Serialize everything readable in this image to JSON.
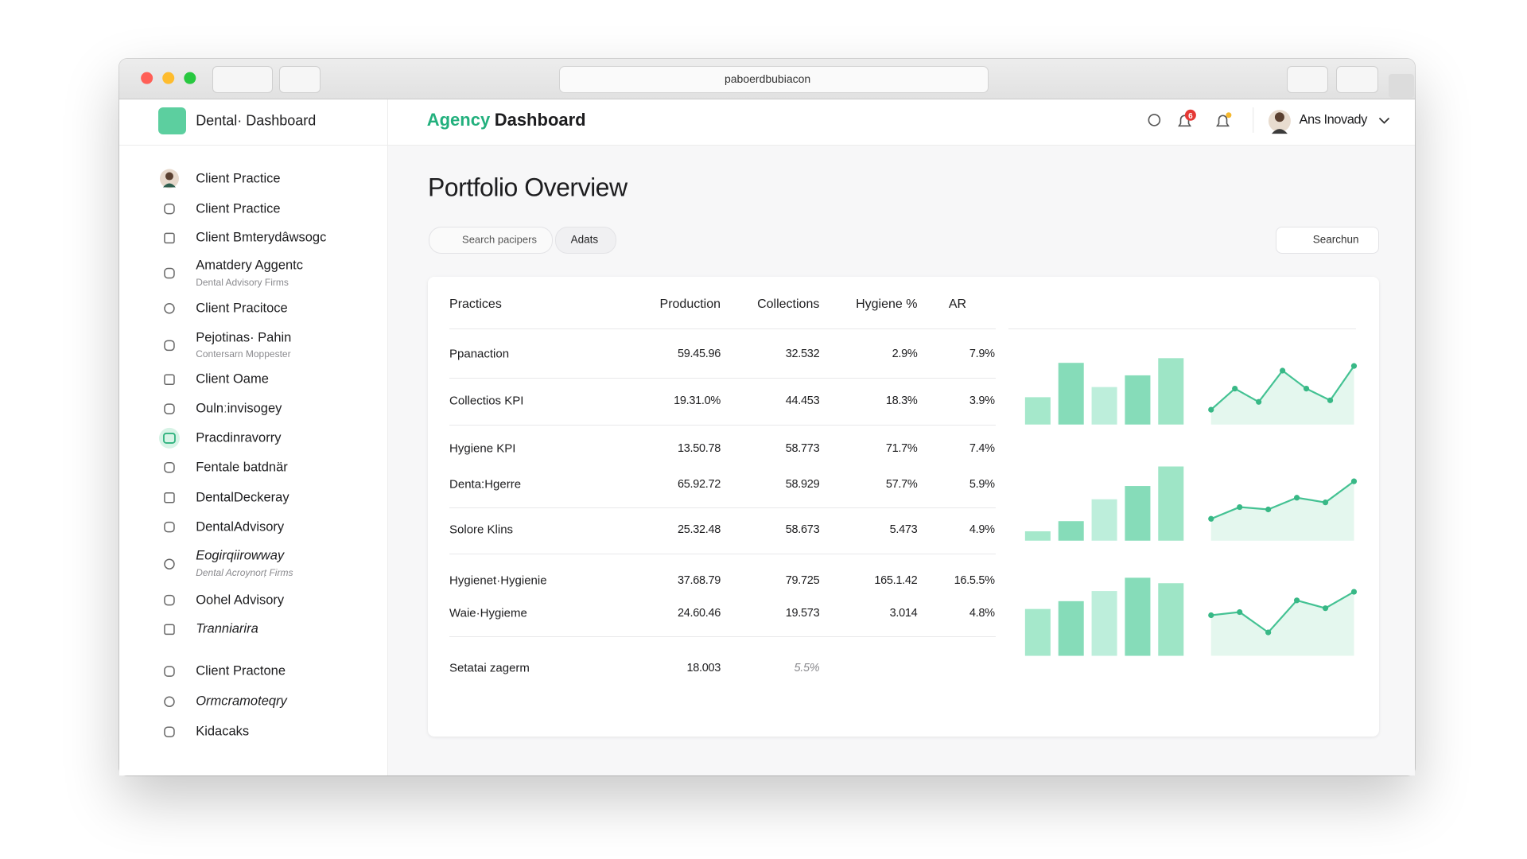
{
  "browser": {
    "url": "paboerdbubiacon"
  },
  "sidebar": {
    "brand": "Dental· Dashboard",
    "items": [
      {
        "label": "Client Practice"
      },
      {
        "label": "Client Practice"
      },
      {
        "label": "Client Bmterydâwsogc"
      },
      {
        "label": "Amatdery Aggentc",
        "sub": "Dental Advisory Firms"
      },
      {
        "label": "Client Pracitoce"
      },
      {
        "label": "Pejotinas· Pahin",
        "sub": "Contersarn Moppester"
      },
      {
        "label": "Client Oame"
      },
      {
        "label": "Oulnːinvisogey"
      },
      {
        "label": "Pracdinravorry"
      },
      {
        "label": "Fentale batdnär"
      },
      {
        "label": "DentalDeckeray"
      },
      {
        "label": "DentalAdvisory"
      },
      {
        "label": "Eogirqiirowway",
        "sub": "Dental Acroynorṭ Firms"
      },
      {
        "label": "Oohel Advisory"
      },
      {
        "label": "Tranniarira"
      },
      {
        "label": "Client Practone"
      },
      {
        "label": "Ormcramoteqry"
      },
      {
        "label": "Kidacaks"
      }
    ]
  },
  "header": {
    "title_accent": "Agency",
    "title": "Dashboard",
    "badge": "6",
    "user": "Ans Inovady"
  },
  "content": {
    "title": "Portfolio Overview",
    "search_placeholder": "Search pacipers",
    "filter": "Adats",
    "search_button": "Searchun"
  },
  "table": {
    "columns": [
      "Practices",
      "Production",
      "Collections",
      "Hygiene %",
      "AR"
    ],
    "groups": [
      [
        [
          "Ppanaction",
          "59.45.96",
          "32.532",
          "2.9%",
          "7.9%"
        ]
      ],
      [
        [
          "Collectios KPI",
          "19.31.0%",
          "44.453",
          "18.3%",
          "3.9%"
        ]
      ],
      [
        [
          "Hygiene KPI",
          "13.50.78",
          "58.773",
          "71.7%",
          "7.4%"
        ],
        [
          "Denta:Hgerre",
          "65.92.72",
          "58.929",
          "57.7%",
          "5.9%"
        ]
      ],
      [
        [
          "Solore Klins",
          "25.32.48",
          "58.673",
          "5.473",
          "4.9%"
        ]
      ],
      [
        [
          "Hygienet·Hygienie",
          "37.68.79",
          "79.725",
          "165.1.42",
          "16.5.5%"
        ],
        [
          "Waie·Hygieme",
          "24.60.46",
          "19.573",
          "3.014",
          "4.8%"
        ]
      ],
      [
        [
          "Setatai zagerm",
          "18.003",
          "5.5%"
        ]
      ]
    ]
  },
  "sparklines": {
    "ylim": [
      0,
      100
    ],
    "charts": [
      {
        "bars": [
          35,
          79,
          48,
          63,
          85
        ],
        "line": [
          19,
          46,
          29,
          69,
          46,
          31,
          75
        ]
      },
      {
        "bars": [
          12,
          25,
          53,
          70,
          95
        ],
        "line": [
          28,
          43,
          40,
          55,
          49,
          76
        ]
      },
      {
        "bars": [
          60,
          70,
          83,
          100,
          93
        ],
        "line": [
          52,
          56,
          30,
          71,
          61,
          82
        ]
      }
    ]
  }
}
